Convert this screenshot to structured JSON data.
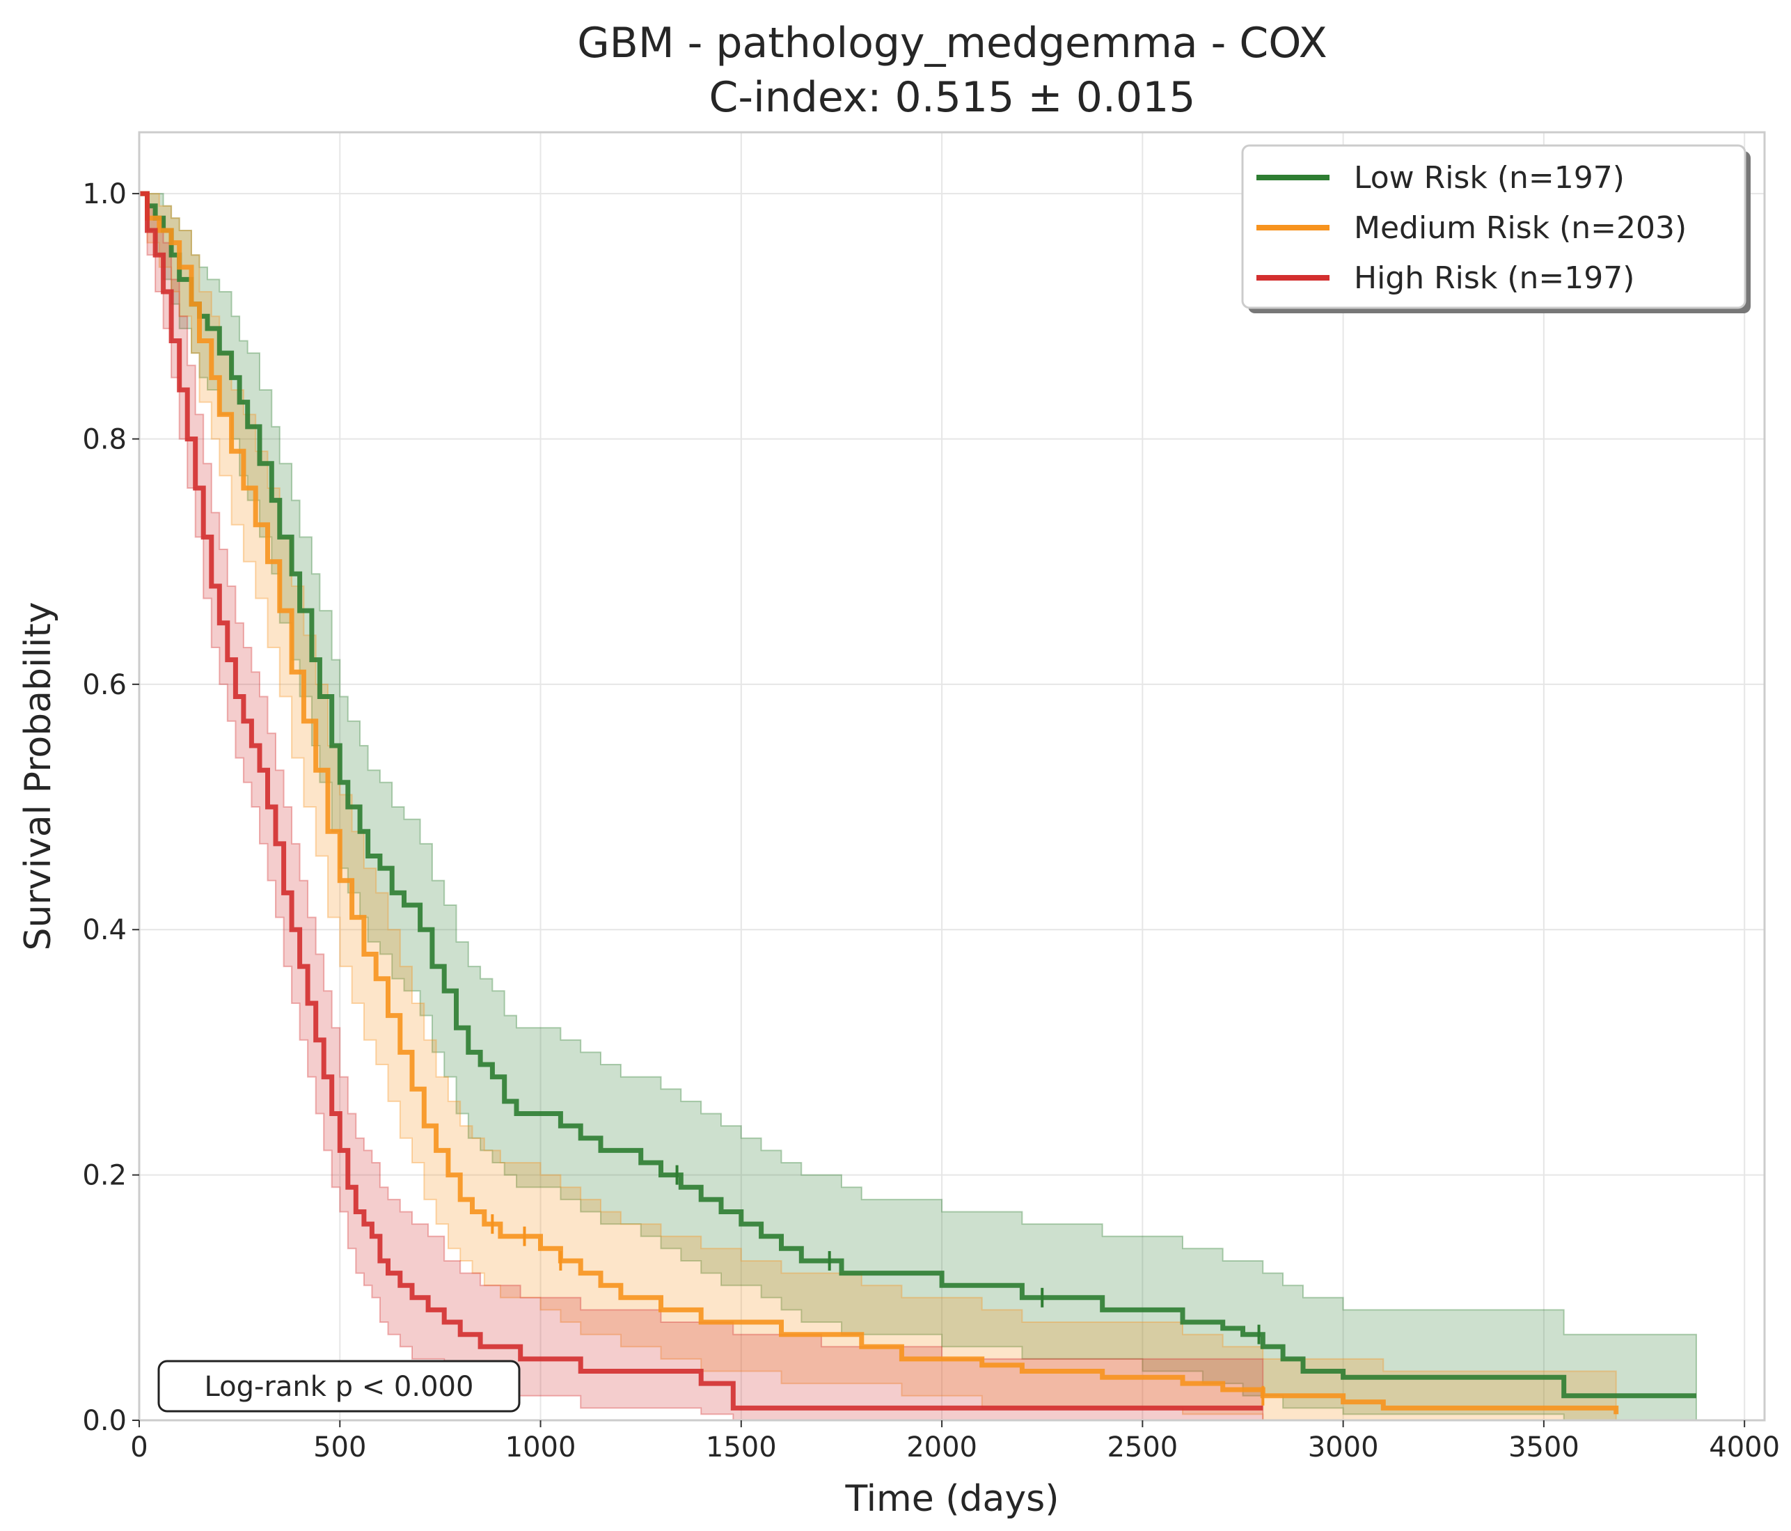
{
  "chart_data": {
    "type": "line",
    "title": "GBM - pathology_medgemma - COX",
    "subtitle": "C-index: 0.515 ± 0.015",
    "xlabel": "Time (days)",
    "ylabel": "Survival Probability",
    "xlim": [
      0,
      4050
    ],
    "ylim": [
      0,
      1.05
    ],
    "xticks": [
      0,
      500,
      1000,
      1500,
      2000,
      2500,
      3000,
      3500,
      4000
    ],
    "xtick_labels": [
      "0",
      "500",
      "1000",
      "1500",
      "2000",
      "2500",
      "3000",
      "3500",
      "4000"
    ],
    "yticks": [
      0,
      0.2,
      0.4,
      0.6,
      0.8,
      1.0
    ],
    "ytick_labels": [
      "0.0",
      "0.2",
      "0.4",
      "0.6",
      "0.8",
      "1.0"
    ],
    "grid": true,
    "legend_position": "top-right",
    "annotation": "Log-rank p < 0.000",
    "series": [
      {
        "name": "Low Risk (n=197)",
        "color": "#2e7d32",
        "x": [
          0,
          20,
          40,
          60,
          80,
          100,
          130,
          150,
          170,
          200,
          230,
          250,
          270,
          300,
          330,
          350,
          380,
          400,
          430,
          450,
          480,
          500,
          520,
          550,
          570,
          600,
          630,
          660,
          700,
          730,
          760,
          790,
          820,
          850,
          880,
          910,
          940,
          970,
          1000,
          1050,
          1100,
          1150,
          1200,
          1250,
          1300,
          1350,
          1400,
          1450,
          1500,
          1550,
          1600,
          1650,
          1700,
          1750,
          1800,
          1900,
          2000,
          2100,
          2200,
          2300,
          2400,
          2500,
          2600,
          2650,
          2700,
          2750,
          2800,
          2850,
          2900,
          3000,
          3100,
          3300,
          3500,
          3550,
          3700,
          3880
        ],
        "y": [
          1.0,
          0.99,
          0.98,
          0.97,
          0.95,
          0.93,
          0.91,
          0.9,
          0.89,
          0.87,
          0.85,
          0.83,
          0.81,
          0.78,
          0.75,
          0.72,
          0.69,
          0.66,
          0.62,
          0.59,
          0.55,
          0.52,
          0.5,
          0.48,
          0.46,
          0.45,
          0.43,
          0.42,
          0.4,
          0.37,
          0.35,
          0.32,
          0.3,
          0.29,
          0.28,
          0.26,
          0.25,
          0.25,
          0.25,
          0.24,
          0.23,
          0.22,
          0.22,
          0.21,
          0.2,
          0.19,
          0.18,
          0.17,
          0.16,
          0.15,
          0.14,
          0.13,
          0.13,
          0.12,
          0.12,
          0.12,
          0.11,
          0.11,
          0.1,
          0.1,
          0.09,
          0.09,
          0.08,
          0.08,
          0.075,
          0.07,
          0.06,
          0.05,
          0.04,
          0.035,
          0.035,
          0.035,
          0.035,
          0.02,
          0.02,
          0.02
        ],
        "ci_lower": [
          1.0,
          0.97,
          0.95,
          0.93,
          0.91,
          0.89,
          0.87,
          0.85,
          0.84,
          0.82,
          0.8,
          0.77,
          0.75,
          0.72,
          0.69,
          0.65,
          0.62,
          0.59,
          0.55,
          0.52,
          0.48,
          0.45,
          0.43,
          0.41,
          0.39,
          0.38,
          0.36,
          0.35,
          0.33,
          0.3,
          0.28,
          0.25,
          0.23,
          0.22,
          0.21,
          0.2,
          0.19,
          0.19,
          0.19,
          0.18,
          0.17,
          0.16,
          0.16,
          0.15,
          0.14,
          0.13,
          0.12,
          0.11,
          0.11,
          0.1,
          0.09,
          0.08,
          0.08,
          0.07,
          0.07,
          0.07,
          0.06,
          0.06,
          0.05,
          0.05,
          0.05,
          0.04,
          0.04,
          0.03,
          0.03,
          0.02,
          0.02,
          0.01,
          0.01,
          0.005,
          0.005,
          0.005,
          0.005,
          0.0,
          0.0,
          0.0
        ],
        "ci_upper": [
          1.0,
          1.0,
          1.0,
          0.99,
          0.98,
          0.97,
          0.95,
          0.94,
          0.93,
          0.92,
          0.9,
          0.88,
          0.87,
          0.84,
          0.81,
          0.78,
          0.75,
          0.72,
          0.69,
          0.66,
          0.62,
          0.59,
          0.57,
          0.55,
          0.53,
          0.52,
          0.5,
          0.49,
          0.47,
          0.44,
          0.42,
          0.39,
          0.37,
          0.36,
          0.35,
          0.33,
          0.32,
          0.32,
          0.32,
          0.31,
          0.3,
          0.29,
          0.28,
          0.28,
          0.27,
          0.26,
          0.25,
          0.24,
          0.23,
          0.22,
          0.21,
          0.2,
          0.2,
          0.19,
          0.18,
          0.18,
          0.17,
          0.17,
          0.16,
          0.16,
          0.15,
          0.15,
          0.14,
          0.14,
          0.13,
          0.13,
          0.12,
          0.11,
          0.1,
          0.09,
          0.09,
          0.09,
          0.09,
          0.07,
          0.07,
          0.07
        ],
        "censor_x": [
          1340,
          1720,
          2250,
          2790
        ]
      },
      {
        "name": "Medium Risk (n=203)",
        "color": "#f7931e",
        "x": [
          0,
          20,
          50,
          80,
          100,
          130,
          150,
          180,
          200,
          230,
          260,
          290,
          320,
          350,
          380,
          410,
          440,
          470,
          500,
          530,
          560,
          590,
          620,
          650,
          680,
          710,
          740,
          770,
          800,
          830,
          860,
          900,
          950,
          1000,
          1050,
          1100,
          1150,
          1200,
          1300,
          1400,
          1500,
          1600,
          1700,
          1800,
          1900,
          2000,
          2100,
          2200,
          2400,
          2600,
          2700,
          2800,
          3000,
          3100,
          3300,
          3500,
          3680
        ],
        "y": [
          1.0,
          0.98,
          0.97,
          0.96,
          0.94,
          0.91,
          0.88,
          0.85,
          0.82,
          0.79,
          0.76,
          0.73,
          0.7,
          0.66,
          0.61,
          0.57,
          0.53,
          0.48,
          0.44,
          0.41,
          0.38,
          0.36,
          0.33,
          0.3,
          0.27,
          0.24,
          0.22,
          0.2,
          0.18,
          0.17,
          0.16,
          0.15,
          0.15,
          0.14,
          0.13,
          0.12,
          0.11,
          0.1,
          0.09,
          0.08,
          0.08,
          0.07,
          0.07,
          0.06,
          0.05,
          0.05,
          0.045,
          0.04,
          0.035,
          0.03,
          0.025,
          0.02,
          0.015,
          0.01,
          0.01,
          0.01,
          0.005
        ],
        "ci_lower": [
          1.0,
          0.96,
          0.94,
          0.92,
          0.9,
          0.87,
          0.83,
          0.8,
          0.77,
          0.73,
          0.7,
          0.67,
          0.63,
          0.59,
          0.54,
          0.5,
          0.46,
          0.41,
          0.37,
          0.34,
          0.31,
          0.29,
          0.26,
          0.23,
          0.21,
          0.18,
          0.16,
          0.14,
          0.13,
          0.12,
          0.11,
          0.1,
          0.1,
          0.09,
          0.08,
          0.07,
          0.07,
          0.06,
          0.05,
          0.04,
          0.04,
          0.03,
          0.03,
          0.03,
          0.02,
          0.02,
          0.01,
          0.01,
          0.01,
          0.005,
          0.005,
          0.0,
          0.0,
          0.0,
          0.0,
          0.0,
          0.0
        ],
        "ci_upper": [
          1.0,
          1.0,
          0.99,
          0.98,
          0.97,
          0.95,
          0.92,
          0.9,
          0.87,
          0.84,
          0.82,
          0.79,
          0.76,
          0.72,
          0.68,
          0.64,
          0.6,
          0.55,
          0.51,
          0.48,
          0.45,
          0.43,
          0.4,
          0.37,
          0.34,
          0.31,
          0.28,
          0.26,
          0.24,
          0.23,
          0.22,
          0.21,
          0.21,
          0.2,
          0.19,
          0.18,
          0.17,
          0.16,
          0.15,
          0.14,
          0.13,
          0.12,
          0.12,
          0.11,
          0.1,
          0.1,
          0.09,
          0.08,
          0.08,
          0.07,
          0.06,
          0.05,
          0.05,
          0.04,
          0.04,
          0.04,
          0.04
        ],
        "censor_x": [
          880,
          960,
          1050,
          2800
        ]
      },
      {
        "name": "High Risk (n=197)",
        "color": "#d32f2f",
        "x": [
          0,
          20,
          40,
          60,
          80,
          100,
          120,
          140,
          160,
          180,
          200,
          220,
          240,
          260,
          280,
          300,
          320,
          340,
          360,
          380,
          400,
          420,
          440,
          460,
          480,
          500,
          520,
          540,
          560,
          580,
          600,
          620,
          650,
          680,
          720,
          760,
          800,
          850,
          900,
          950,
          1000,
          1100,
          1200,
          1300,
          1400,
          1480,
          1500,
          1700,
          2000,
          2500,
          2800
        ],
        "y": [
          1.0,
          0.97,
          0.95,
          0.92,
          0.88,
          0.84,
          0.8,
          0.76,
          0.72,
          0.68,
          0.65,
          0.62,
          0.59,
          0.57,
          0.55,
          0.53,
          0.5,
          0.47,
          0.43,
          0.4,
          0.37,
          0.34,
          0.31,
          0.28,
          0.25,
          0.22,
          0.19,
          0.17,
          0.16,
          0.15,
          0.13,
          0.12,
          0.11,
          0.1,
          0.09,
          0.08,
          0.07,
          0.06,
          0.06,
          0.05,
          0.05,
          0.04,
          0.04,
          0.04,
          0.03,
          0.01,
          0.01,
          0.01,
          0.01,
          0.01,
          0.01
        ],
        "ci_lower": [
          1.0,
          0.95,
          0.92,
          0.89,
          0.85,
          0.8,
          0.76,
          0.72,
          0.67,
          0.63,
          0.6,
          0.57,
          0.54,
          0.52,
          0.5,
          0.47,
          0.44,
          0.41,
          0.37,
          0.34,
          0.31,
          0.28,
          0.25,
          0.22,
          0.19,
          0.17,
          0.14,
          0.12,
          0.11,
          0.1,
          0.08,
          0.07,
          0.06,
          0.05,
          0.05,
          0.04,
          0.03,
          0.03,
          0.02,
          0.02,
          0.02,
          0.01,
          0.01,
          0.01,
          0.005,
          0.0,
          0.0,
          0.0,
          0.0,
          0.0,
          0.0
        ],
        "ci_upper": [
          1.0,
          0.99,
          0.98,
          0.96,
          0.93,
          0.9,
          0.86,
          0.82,
          0.78,
          0.74,
          0.71,
          0.68,
          0.65,
          0.63,
          0.61,
          0.59,
          0.56,
          0.53,
          0.5,
          0.47,
          0.44,
          0.41,
          0.38,
          0.35,
          0.32,
          0.28,
          0.25,
          0.23,
          0.22,
          0.21,
          0.19,
          0.18,
          0.17,
          0.16,
          0.15,
          0.13,
          0.12,
          0.11,
          0.11,
          0.1,
          0.1,
          0.09,
          0.09,
          0.08,
          0.08,
          0.07,
          0.07,
          0.06,
          0.05,
          0.05,
          0.05
        ],
        "censor_x": []
      }
    ]
  }
}
